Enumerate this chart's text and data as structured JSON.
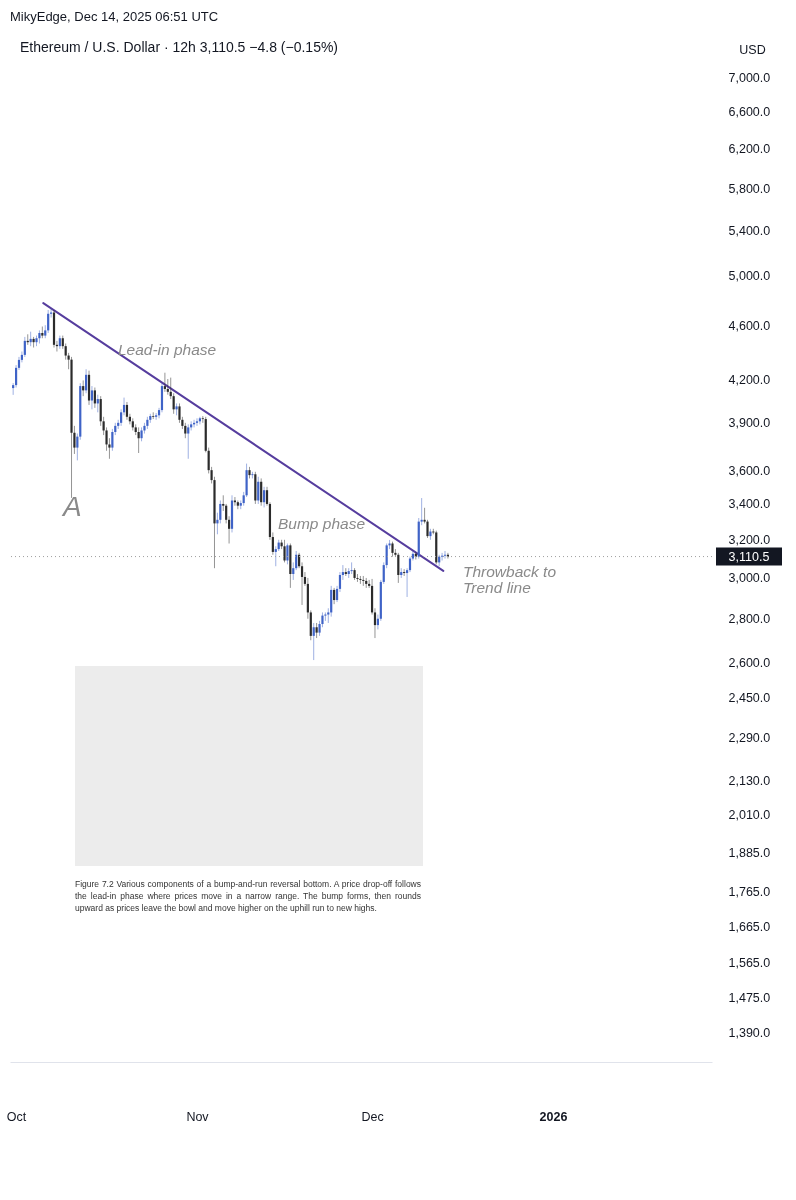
{
  "chart_data": {
    "type": "candlestick",
    "title": "Ethereum / U.S. Dollar · 12h 3,110.5 −4.8 (−0.15%)",
    "ylabel": "USD",
    "x": [
      "2025-09-30T12:00",
      "2025-10-01T00:00",
      "2025-10-01T12:00",
      "2025-10-02T00:00",
      "2025-10-02T12:00",
      "2025-10-03T00:00",
      "2025-10-03T12:00",
      "2025-10-04T00:00",
      "2025-10-04T12:00",
      "2025-10-05T00:00",
      "2025-10-05T12:00",
      "2025-10-06T00:00",
      "2025-10-06T12:00",
      "2025-10-07T00:00",
      "2025-10-07T12:00",
      "2025-10-08T00:00",
      "2025-10-08T12:00",
      "2025-10-09T00:00",
      "2025-10-09T12:00",
      "2025-10-10T00:00",
      "2025-10-10T12:00",
      "2025-10-11T00:00",
      "2025-10-11T12:00",
      "2025-10-12T00:00",
      "2025-10-12T12:00",
      "2025-10-13T00:00",
      "2025-10-13T12:00",
      "2025-10-14T00:00",
      "2025-10-14T12:00",
      "2025-10-15T00:00",
      "2025-10-15T12:00",
      "2025-10-16T00:00",
      "2025-10-16T12:00",
      "2025-10-17T00:00",
      "2025-10-17T12:00",
      "2025-10-18T00:00",
      "2025-10-18T12:00",
      "2025-10-19T00:00",
      "2025-10-19T12:00",
      "2025-10-20T00:00",
      "2025-10-20T12:00",
      "2025-10-21T00:00",
      "2025-10-21T12:00",
      "2025-10-22T00:00",
      "2025-10-22T12:00",
      "2025-10-23T00:00",
      "2025-10-23T12:00",
      "2025-10-24T00:00",
      "2025-10-24T12:00",
      "2025-10-25T00:00",
      "2025-10-25T12:00",
      "2025-10-26T00:00",
      "2025-10-26T12:00",
      "2025-10-27T00:00",
      "2025-10-27T12:00",
      "2025-10-28T00:00",
      "2025-10-28T12:00",
      "2025-10-29T00:00",
      "2025-10-29T12:00",
      "2025-10-30T00:00",
      "2025-10-30T12:00",
      "2025-10-31T00:00",
      "2025-10-31T12:00",
      "2025-11-01T00:00",
      "2025-11-01T12:00",
      "2025-11-02T00:00",
      "2025-11-02T12:00",
      "2025-11-03T00:00",
      "2025-11-03T12:00",
      "2025-11-04T00:00",
      "2025-11-04T12:00",
      "2025-11-05T00:00",
      "2025-11-05T12:00",
      "2025-11-06T00:00",
      "2025-11-06T12:00",
      "2025-11-07T00:00",
      "2025-11-07T12:00",
      "2025-11-08T00:00",
      "2025-11-08T12:00",
      "2025-11-09T00:00",
      "2025-11-09T12:00",
      "2025-11-10T00:00",
      "2025-11-10T12:00",
      "2025-11-11T00:00",
      "2025-11-11T12:00",
      "2025-11-12T00:00",
      "2025-11-12T12:00",
      "2025-11-13T00:00",
      "2025-11-13T12:00",
      "2025-11-14T00:00",
      "2025-11-14T12:00",
      "2025-11-15T00:00",
      "2025-11-15T12:00",
      "2025-11-16T00:00",
      "2025-11-16T12:00",
      "2025-11-17T00:00",
      "2025-11-17T12:00",
      "2025-11-18T00:00",
      "2025-11-18T12:00",
      "2025-11-19T00:00",
      "2025-11-19T12:00",
      "2025-11-20T00:00",
      "2025-11-20T12:00",
      "2025-11-21T00:00",
      "2025-11-21T12:00",
      "2025-11-22T00:00",
      "2025-11-22T12:00",
      "2025-11-23T00:00",
      "2025-11-23T12:00",
      "2025-11-24T00:00",
      "2025-11-24T12:00",
      "2025-11-25T00:00",
      "2025-11-25T12:00",
      "2025-11-26T00:00",
      "2025-11-26T12:00",
      "2025-11-27T00:00",
      "2025-11-27T12:00",
      "2025-11-28T00:00",
      "2025-11-28T12:00",
      "2025-11-29T00:00",
      "2025-11-29T12:00",
      "2025-11-30T00:00",
      "2025-11-30T12:00",
      "2025-12-01T00:00",
      "2025-12-01T12:00",
      "2025-12-02T00:00",
      "2025-12-02T12:00",
      "2025-12-03T00:00",
      "2025-12-03T12:00",
      "2025-12-04T00:00",
      "2025-12-04T12:00",
      "2025-12-05T00:00",
      "2025-12-05T12:00",
      "2025-12-06T00:00",
      "2025-12-06T12:00",
      "2025-12-07T00:00",
      "2025-12-07T12:00",
      "2025-12-08T00:00",
      "2025-12-08T12:00",
      "2025-12-09T00:00",
      "2025-12-09T12:00",
      "2025-12-10T00:00",
      "2025-12-10T12:00",
      "2025-12-11T00:00",
      "2025-12-11T12:00",
      "2025-12-12T00:00",
      "2025-12-12T12:00",
      "2025-12-13T00:00",
      "2025-12-13T12:00",
      "2025-12-14T00:00"
    ],
    "ohlc": [
      [
        4136,
        4171,
        4089,
        4157
      ],
      [
        4157,
        4300,
        4140,
        4280
      ],
      [
        4280,
        4360,
        4265,
        4338
      ],
      [
        4338,
        4400,
        4320,
        4375
      ],
      [
        4375,
        4510,
        4360,
        4480
      ],
      [
        4480,
        4530,
        4450,
        4470
      ],
      [
        4470,
        4550,
        4440,
        4495
      ],
      [
        4495,
        4510,
        4430,
        4470
      ],
      [
        4470,
        4520,
        4440,
        4500
      ],
      [
        4500,
        4560,
        4460,
        4540
      ],
      [
        4540,
        4590,
        4500,
        4520
      ],
      [
        4520,
        4600,
        4500,
        4560
      ],
      [
        4560,
        4720,
        4540,
        4690
      ],
      [
        4690,
        4730,
        4660,
        4700
      ],
      [
        4700,
        4720,
        4430,
        4450
      ],
      [
        4450,
        4480,
        4400,
        4440
      ],
      [
        4440,
        4520,
        4420,
        4500
      ],
      [
        4500,
        4520,
        4420,
        4440
      ],
      [
        4440,
        4460,
        4340,
        4370
      ],
      [
        4370,
        4390,
        4270,
        4340
      ],
      [
        4340,
        4360,
        3435,
        3835
      ],
      [
        3835,
        3880,
        3700,
        3740
      ],
      [
        3740,
        3830,
        3660,
        3810
      ],
      [
        3810,
        4170,
        3790,
        4150
      ],
      [
        4150,
        4190,
        4080,
        4120
      ],
      [
        4120,
        4270,
        4100,
        4230
      ],
      [
        4230,
        4260,
        4020,
        4050
      ],
      [
        4050,
        4150,
        3990,
        4120
      ],
      [
        4120,
        4140,
        4000,
        4030
      ],
      [
        4030,
        4090,
        3970,
        4060
      ],
      [
        4060,
        4080,
        3880,
        3910
      ],
      [
        3910,
        3940,
        3820,
        3850
      ],
      [
        3850,
        3870,
        3720,
        3760
      ],
      [
        3760,
        3800,
        3670,
        3740
      ],
      [
        3740,
        3860,
        3720,
        3840
      ],
      [
        3840,
        3900,
        3820,
        3880
      ],
      [
        3880,
        3920,
        3860,
        3900
      ],
      [
        3900,
        3990,
        3880,
        3970
      ],
      [
        3970,
        4070,
        3950,
        4020
      ],
      [
        4020,
        4040,
        3920,
        3940
      ],
      [
        3940,
        3960,
        3890,
        3910
      ],
      [
        3910,
        3930,
        3850,
        3870
      ],
      [
        3870,
        3890,
        3820,
        3840
      ],
      [
        3840,
        3870,
        3706,
        3800
      ],
      [
        3800,
        3870,
        3780,
        3850
      ],
      [
        3850,
        3900,
        3830,
        3880
      ],
      [
        3880,
        3940,
        3860,
        3920
      ],
      [
        3920,
        3960,
        3900,
        3945
      ],
      [
        3945,
        3970,
        3925,
        3940
      ],
      [
        3940,
        3965,
        3920,
        3950
      ],
      [
        3950,
        4000,
        3930,
        3985
      ],
      [
        3985,
        4170,
        3970,
        4150
      ],
      [
        4150,
        4245,
        4110,
        4130
      ],
      [
        4130,
        4200,
        4090,
        4110
      ],
      [
        4110,
        4210,
        4060,
        4080
      ],
      [
        4080,
        4100,
        3960,
        3990
      ],
      [
        3990,
        4030,
        3950,
        4010
      ],
      [
        4010,
        4030,
        3900,
        3920
      ],
      [
        3920,
        3940,
        3860,
        3880
      ],
      [
        3880,
        3900,
        3800,
        3830
      ],
      [
        3830,
        3890,
        3670,
        3870
      ],
      [
        3870,
        3910,
        3850,
        3890
      ],
      [
        3890,
        3920,
        3870,
        3900
      ],
      [
        3900,
        3930,
        3880,
        3910
      ],
      [
        3910,
        3940,
        3890,
        3930
      ],
      [
        3930,
        3945,
        3900,
        3925
      ],
      [
        3925,
        3940,
        3710,
        3720
      ],
      [
        3720,
        3740,
        3580,
        3600
      ],
      [
        3600,
        3620,
        3520,
        3540
      ],
      [
        3540,
        3560,
        3050,
        3290
      ],
      [
        3290,
        3350,
        3230,
        3310
      ],
      [
        3310,
        3420,
        3290,
        3400
      ],
      [
        3400,
        3450,
        3360,
        3390
      ],
      [
        3390,
        3400,
        3290,
        3310
      ],
      [
        3310,
        3330,
        3180,
        3260
      ],
      [
        3260,
        3450,
        3240,
        3420
      ],
      [
        3420,
        3440,
        3390,
        3410
      ],
      [
        3410,
        3420,
        3370,
        3390
      ],
      [
        3390,
        3420,
        3370,
        3405
      ],
      [
        3405,
        3470,
        3390,
        3450
      ],
      [
        3450,
        3640,
        3440,
        3600
      ],
      [
        3600,
        3620,
        3550,
        3570
      ],
      [
        3570,
        3590,
        3550,
        3575
      ],
      [
        3575,
        3590,
        3400,
        3420
      ],
      [
        3420,
        3560,
        3400,
        3530
      ],
      [
        3530,
        3550,
        3390,
        3410
      ],
      [
        3410,
        3500,
        3380,
        3480
      ],
      [
        3480,
        3500,
        3390,
        3400
      ],
      [
        3400,
        3410,
        3200,
        3215
      ],
      [
        3215,
        3240,
        3120,
        3135
      ],
      [
        3135,
        3165,
        3060,
        3150
      ],
      [
        3150,
        3200,
        3140,
        3185
      ],
      [
        3185,
        3200,
        3150,
        3165
      ],
      [
        3165,
        3200,
        3080,
        3090
      ],
      [
        3090,
        3180,
        3070,
        3170
      ],
      [
        3170,
        3180,
        2950,
        3020
      ],
      [
        3020,
        3080,
        2990,
        3050
      ],
      [
        3050,
        3140,
        3040,
        3120
      ],
      [
        3120,
        3130,
        3050,
        3060
      ],
      [
        3060,
        3080,
        2866,
        3005
      ],
      [
        3005,
        3030,
        2960,
        2970
      ],
      [
        2970,
        3000,
        2800,
        2830
      ],
      [
        2830,
        2840,
        2700,
        2720
      ],
      [
        2720,
        2780,
        2611,
        2760
      ],
      [
        2760,
        2780,
        2710,
        2735
      ],
      [
        2735,
        2790,
        2720,
        2775
      ],
      [
        2775,
        2830,
        2760,
        2815
      ],
      [
        2815,
        2830,
        2790,
        2820
      ],
      [
        2820,
        2850,
        2780,
        2830
      ],
      [
        2830,
        2960,
        2810,
        2940
      ],
      [
        2940,
        2950,
        2870,
        2890
      ],
      [
        2890,
        2960,
        2880,
        2945
      ],
      [
        2945,
        3030,
        2930,
        3015
      ],
      [
        3015,
        3066,
        2990,
        3030
      ],
      [
        3030,
        3050,
        3010,
        3020
      ],
      [
        3020,
        3050,
        3000,
        3035
      ],
      [
        3035,
        3080,
        3020,
        3040
      ],
      [
        3040,
        3050,
        2990,
        3000
      ],
      [
        3000,
        3020,
        2980,
        2995
      ],
      [
        2995,
        3010,
        2970,
        2990
      ],
      [
        2990,
        3010,
        2960,
        2985
      ],
      [
        2985,
        3000,
        2950,
        2970
      ],
      [
        2970,
        2990,
        2950,
        2960
      ],
      [
        2960,
        2995,
        2820,
        2830
      ],
      [
        2830,
        2850,
        2710,
        2770
      ],
      [
        2770,
        2820,
        2750,
        2800
      ],
      [
        2800,
        2990,
        2790,
        2980
      ],
      [
        2980,
        3080,
        2970,
        3066
      ],
      [
        3066,
        3180,
        3050,
        3170
      ],
      [
        3170,
        3199,
        3150,
        3180
      ],
      [
        3180,
        3190,
        3110,
        3130
      ],
      [
        3130,
        3150,
        3110,
        3120
      ],
      [
        3120,
        3130,
        2975,
        3015
      ],
      [
        3015,
        3050,
        3000,
        3030
      ],
      [
        3030,
        3045,
        3010,
        3025
      ],
      [
        3025,
        3050,
        2905,
        3040
      ],
      [
        3040,
        3110,
        3030,
        3100
      ],
      [
        3100,
        3140,
        3090,
        3125
      ],
      [
        3125,
        3135,
        3095,
        3110
      ],
      [
        3110,
        3320,
        3100,
        3300
      ],
      [
        3300,
        3434,
        3280,
        3310
      ],
      [
        3310,
        3378,
        3290,
        3300
      ],
      [
        3300,
        3310,
        3210,
        3220
      ],
      [
        3220,
        3260,
        3200,
        3245
      ],
      [
        3245,
        3260,
        3230,
        3240
      ],
      [
        3240,
        3250,
        3070,
        3080
      ],
      [
        3080,
        3120,
        3060,
        3110
      ],
      [
        3110,
        3130,
        3090,
        3115
      ],
      [
        3115,
        3140,
        3100,
        3120
      ],
      [
        3120,
        3130,
        3100,
        3110.5
      ]
    ],
    "colors": [
      "#3f63c7",
      "#3f63c7",
      "#3f63c7",
      "#3f63c7",
      "#3f63c7",
      "#2b2b2b",
      "#3f63c7",
      "#2b2b2b",
      "#3f63c7",
      "#3f63c7",
      "#2b2b2b",
      "#3f63c7",
      "#3f63c7",
      "#3f63c7",
      "#2b2b2b",
      "#2b2b2b",
      "#3f63c7",
      "#2b2b2b",
      "#2b2b2b",
      "#2b2b2b",
      "#2b2b2b",
      "#2b2b2b",
      "#3f63c7",
      "#3f63c7",
      "#2b2b2b",
      "#3f63c7",
      "#2b2b2b",
      "#3f63c7",
      "#2b2b2b",
      "#3f63c7",
      "#2b2b2b",
      "#2b2b2b",
      "#2b2b2b",
      "#2b2b2b",
      "#3f63c7",
      "#3f63c7",
      "#3f63c7",
      "#3f63c7",
      "#3f63c7",
      "#2b2b2b",
      "#2b2b2b",
      "#2b2b2b",
      "#2b2b2b",
      "#2b2b2b",
      "#3f63c7",
      "#3f63c7",
      "#3f63c7",
      "#3f63c7",
      "#2b2b2b",
      "#3f63c7",
      "#3f63c7",
      "#3f63c7",
      "#2b2b2b",
      "#2b2b2b",
      "#2b2b2b",
      "#2b2b2b",
      "#3f63c7",
      "#2b2b2b",
      "#2b2b2b",
      "#2b2b2b",
      "#3f63c7",
      "#3f63c7",
      "#3f63c7",
      "#3f63c7",
      "#3f63c7",
      "#2b2b2b",
      "#2b2b2b",
      "#2b2b2b",
      "#2b2b2b",
      "#2b2b2b",
      "#3f63c7",
      "#3f63c7",
      "#2b2b2b",
      "#2b2b2b",
      "#2b2b2b",
      "#3f63c7",
      "#2b2b2b",
      "#2b2b2b",
      "#3f63c7",
      "#3f63c7",
      "#3f63c7",
      "#2b2b2b",
      "#3f63c7",
      "#2b2b2b",
      "#3f63c7",
      "#2b2b2b",
      "#3f63c7",
      "#2b2b2b",
      "#2b2b2b",
      "#2b2b2b",
      "#3f63c7",
      "#3f63c7",
      "#2b2b2b",
      "#2b2b2b",
      "#3f63c7",
      "#2b2b2b",
      "#3f63c7",
      "#3f63c7",
      "#2b2b2b",
      "#2b2b2b",
      "#2b2b2b",
      "#2b2b2b",
      "#2b2b2b",
      "#3f63c7",
      "#2b2b2b",
      "#3f63c7",
      "#3f63c7",
      "#3f63c7",
      "#3f63c7",
      "#3f63c7",
      "#2b2b2b",
      "#3f63c7",
      "#3f63c7",
      "#3f63c7",
      "#2b2b2b",
      "#3f63c7",
      "#3f63c7",
      "#2b2b2b",
      "#2b2b2b",
      "#2b2b2b",
      "#2b2b2b",
      "#2b2b2b",
      "#2b2b2b",
      "#2b2b2b",
      "#2b2b2b",
      "#3f63c7",
      "#3f63c7",
      "#3f63c7",
      "#3f63c7",
      "#3f63c7",
      "#2b2b2b",
      "#2b2b2b",
      "#2b2b2b",
      "#3f63c7",
      "#2b2b2b",
      "#3f63c7",
      "#3f63c7",
      "#3f63c7",
      "#2b2b2b",
      "#3f63c7",
      "#3f63c7",
      "#2b2b2b",
      "#2b2b2b",
      "#3f63c7",
      "#2b2b2b",
      "#2b2b2b",
      "#3f63c7",
      "#3f63c7",
      "#3f63c7",
      "#2b2b2b"
    ],
    "series": [
      {
        "type": "line",
        "color": "#563d9e",
        "x": [
          "2025-10-05T16:00",
          "2025-12-13T05:00"
        ],
        "values": [
          4775,
          3036
        ]
      }
    ],
    "xlim": [
      "2025-09-29T23:00",
      "2026-01-28T06:00"
    ],
    "xticks": [
      {
        "value": "2025-10-01",
        "label": "Oct"
      },
      {
        "value": "2025-11-01",
        "label": "Nov"
      },
      {
        "value": "2025-12-01",
        "label": "Dec"
      },
      {
        "value": "2026-01-01",
        "label": "2026"
      }
    ],
    "ylim": [
      1323,
      7000
    ],
    "yticks": [
      {
        "value": 1390,
        "label": "1,390.0"
      },
      {
        "value": 1475,
        "label": "1,475.0"
      },
      {
        "value": 1565,
        "label": "1,565.0"
      },
      {
        "value": 1665,
        "label": "1,665.0"
      },
      {
        "value": 1765,
        "label": "1,765.0"
      },
      {
        "value": 1885,
        "label": "1,885.0"
      },
      {
        "value": 2010,
        "label": "2,010.0"
      },
      {
        "value": 2130,
        "label": "2,130.0"
      },
      {
        "value": 2290,
        "label": "2,290.0"
      },
      {
        "value": 2450,
        "label": "2,450.0"
      },
      {
        "value": 2600,
        "label": "2,600.0"
      },
      {
        "value": 2800,
        "label": "2,800.0"
      },
      {
        "value": 3000,
        "label": "3,000.0"
      },
      {
        "value": 3200,
        "label": "3,200.0"
      },
      {
        "value": 3400,
        "label": "3,400.0"
      },
      {
        "value": 3600,
        "label": "3,600.0"
      },
      {
        "value": 3900,
        "label": "3,900.0"
      },
      {
        "value": 4200,
        "label": "4,200.0"
      },
      {
        "value": 4600,
        "label": "4,600.0"
      },
      {
        "value": 5000,
        "label": "5,000.0"
      },
      {
        "value": 5400,
        "label": "5,400.0"
      },
      {
        "value": 5800,
        "label": "5,800.0"
      },
      {
        "value": 6200,
        "label": "6,200.0"
      },
      {
        "value": 6600,
        "label": "6,600.0"
      },
      {
        "value": 7000,
        "label": "7,000.0"
      }
    ],
    "log": true,
    "grid": false,
    "ref_lines": [
      {
        "axis": "y",
        "value": 3110.5,
        "label": "3,110.5",
        "color": "#9e9e9e",
        "line_style": "dotted"
      }
    ],
    "annotations": [
      "MikyEdge, Dec 14, 2025 06:51 UTC",
      {
        "text": "Lead-in phase",
        "x": "2025-10-18T11:00",
        "y": 4412
      },
      "A",
      "Bump phase",
      "Throwback to\nTrend line",
      "Figure 7.2 Various components of a bump-and-run reversal bottom. A price drop-off follows the lead-in phase where prices move in a narrow range. The bump forms, then rounds upward as prices leave the bowl and move higher on the uphill run to new highs."
    ]
  }
}
